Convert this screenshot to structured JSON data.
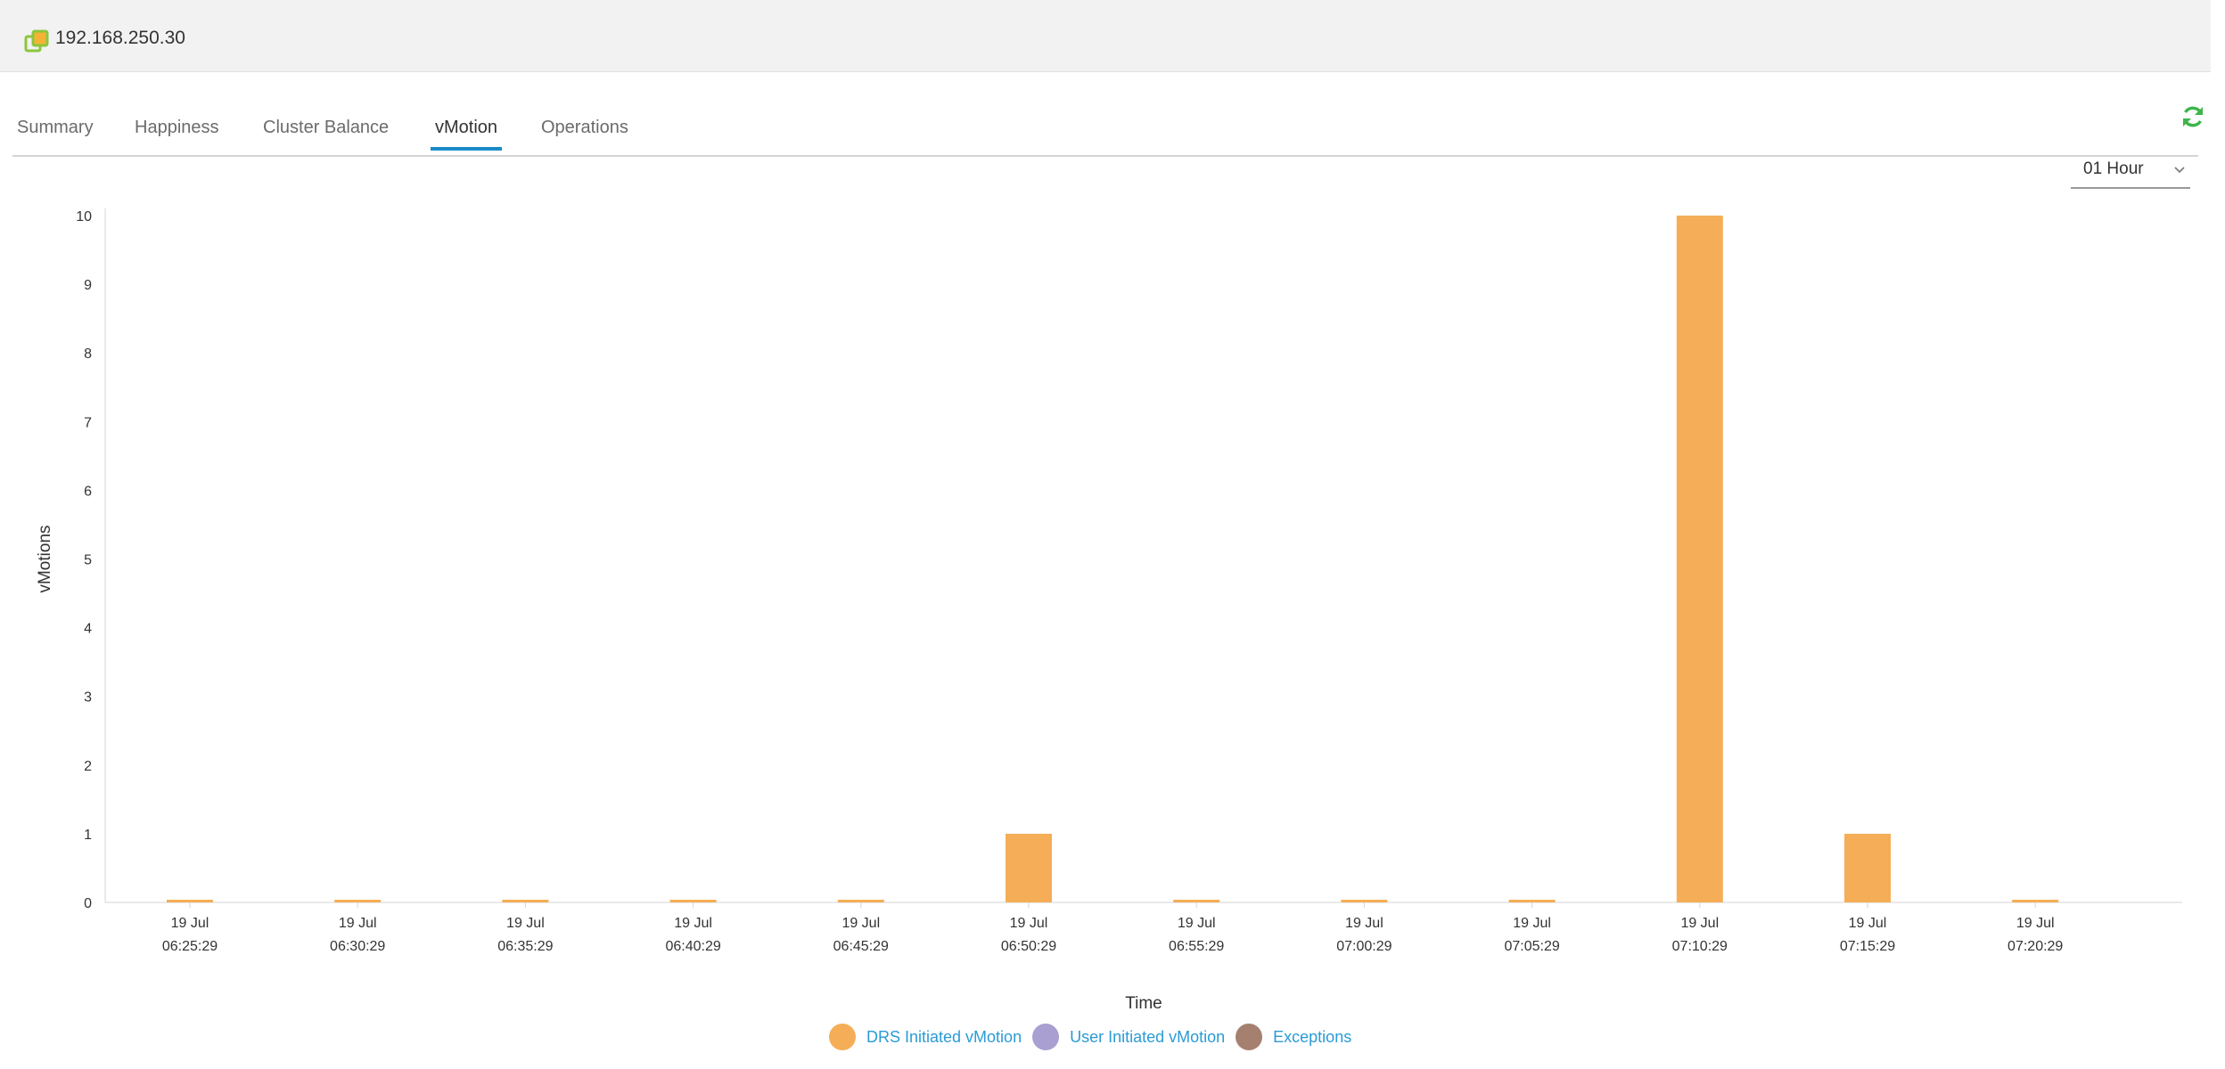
{
  "header": {
    "host": "192.168.250.30",
    "host_icon": "host-cluster-icon"
  },
  "tabs": [
    {
      "label": "Summary",
      "active": false
    },
    {
      "label": "Happiness",
      "active": false
    },
    {
      "label": "Cluster Balance",
      "active": false
    },
    {
      "label": "vMotion",
      "active": true
    },
    {
      "label": "Operations",
      "active": false
    }
  ],
  "toolbar": {
    "refresh_icon": "refresh-icon",
    "range_value": "01 Hour"
  },
  "colors": {
    "drs": "#f5ae57",
    "user": "#a99fd0",
    "exceptions": "#a6806f",
    "active_tab": "#1a8ac7",
    "refresh": "#3db54a"
  },
  "chart_data": {
    "type": "bar",
    "xlabel": "Time",
    "ylabel": "vMotions",
    "ylim": [
      0,
      10
    ],
    "yticks": [
      "0",
      "1",
      "2",
      "3",
      "4",
      "5",
      "6",
      "7",
      "8",
      "9",
      "10"
    ],
    "categories": [
      [
        "19 Jul",
        "06:25:29"
      ],
      [
        "19 Jul",
        "06:30:29"
      ],
      [
        "19 Jul",
        "06:35:29"
      ],
      [
        "19 Jul",
        "06:40:29"
      ],
      [
        "19 Jul",
        "06:45:29"
      ],
      [
        "19 Jul",
        "06:50:29"
      ],
      [
        "19 Jul",
        "06:55:29"
      ],
      [
        "19 Jul",
        "07:00:29"
      ],
      [
        "19 Jul",
        "07:05:29"
      ],
      [
        "19 Jul",
        "07:10:29"
      ],
      [
        "19 Jul",
        "07:15:29"
      ],
      [
        "19 Jul",
        "07:20:29"
      ]
    ],
    "series": [
      {
        "name": "DRS Initiated vMotion",
        "values": [
          0,
          0,
          0,
          0,
          0,
          1,
          0,
          0,
          0,
          10,
          1,
          0
        ]
      },
      {
        "name": "User Initiated vMotion",
        "values": [
          0,
          0,
          0,
          0,
          0,
          0,
          0,
          0,
          0,
          0,
          0,
          0
        ]
      },
      {
        "name": "Exceptions",
        "values": [
          0,
          0,
          0,
          0,
          0,
          0,
          0,
          0,
          0,
          0,
          0,
          0
        ]
      }
    ],
    "legend_position": "bottom-center",
    "grid": false
  }
}
